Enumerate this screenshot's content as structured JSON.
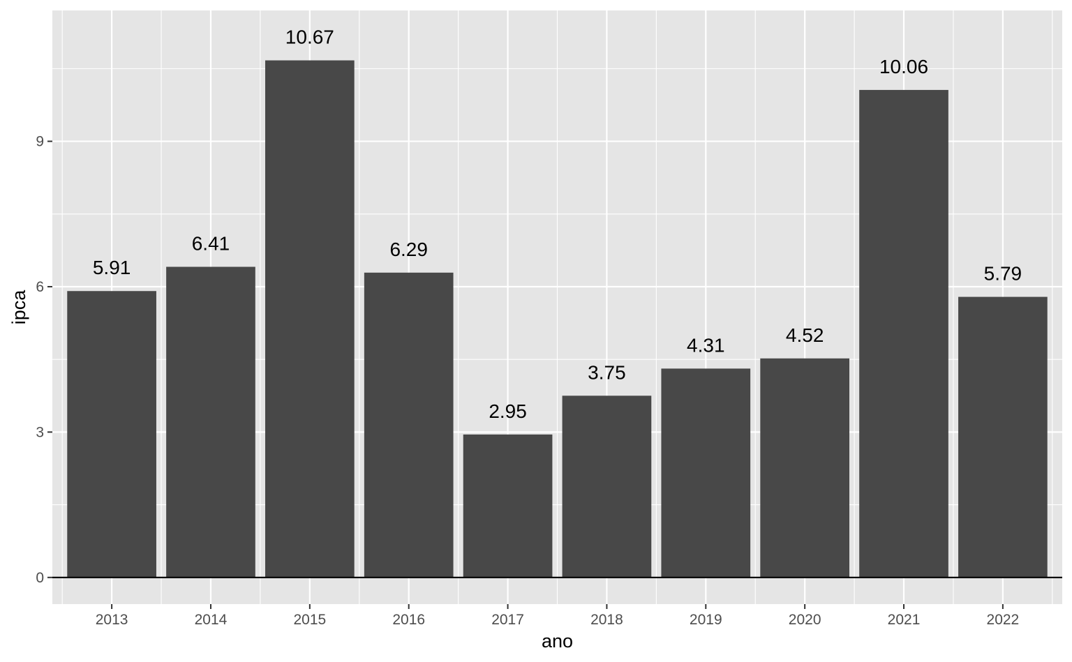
{
  "chart_data": {
    "type": "bar",
    "categories": [
      "2013",
      "2014",
      "2015",
      "2016",
      "2017",
      "2018",
      "2019",
      "2020",
      "2021",
      "2022"
    ],
    "values": [
      5.91,
      6.41,
      10.67,
      6.29,
      2.95,
      3.75,
      4.31,
      4.52,
      10.06,
      5.79
    ],
    "value_labels": [
      "5.91",
      "6.41",
      "10.67",
      "6.29",
      "2.95",
      "3.75",
      "4.31",
      "4.52",
      "10.06",
      "5.79"
    ],
    "title": "",
    "xlabel": "ano",
    "ylabel": "ipca",
    "ylim": [
      -0.55,
      11.7
    ],
    "yticks": [
      0,
      3,
      6,
      9
    ],
    "ytick_labels": [
      "0",
      "3",
      "6",
      "9"
    ],
    "zero_line": true,
    "grid": true,
    "colors": {
      "panel_background": "#e5e5e5",
      "grid": "#ffffff",
      "bar_fill": "#484848",
      "zero_line": "#000000",
      "tick_text": "#4d4d4d",
      "label_text": "#000000"
    }
  }
}
